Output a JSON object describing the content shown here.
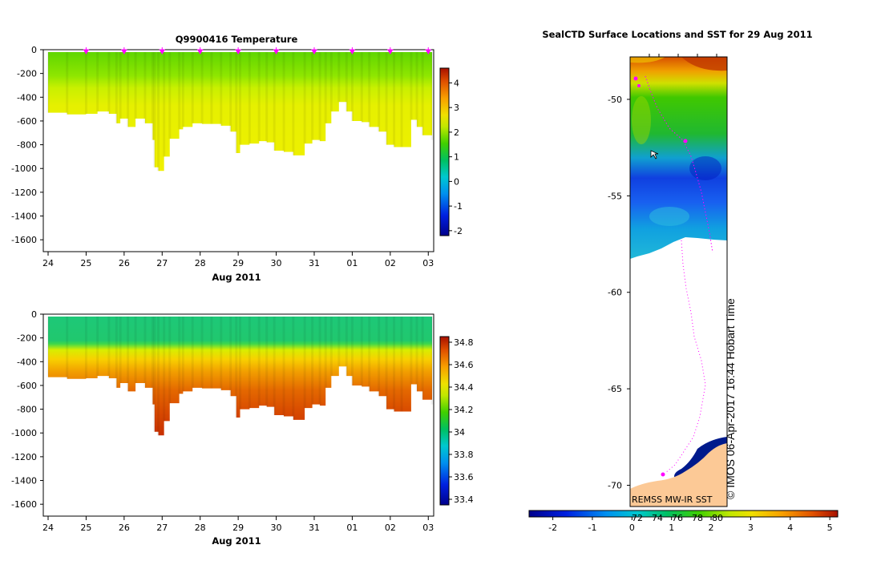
{
  "colors": {
    "white": "#ffffff",
    "land": "#fcc996",
    "track": "#ff00ff"
  },
  "chart_data": [
    {
      "type": "heatmap",
      "title": "Q9900416  Temperature",
      "xlabel": "Aug 2011",
      "ylabel": "",
      "xticks": [
        "24",
        "25",
        "26",
        "27",
        "28",
        "29",
        "30",
        "31",
        "01",
        "02",
        "03"
      ],
      "x_range_days": [
        24.0,
        34.1
      ],
      "ylim": [
        -1700,
        0
      ],
      "yticks": [
        0,
        -200,
        -400,
        -600,
        -800,
        -1000,
        -1200,
        -1400,
        -1600
      ],
      "colorbar": {
        "min": -2.2,
        "max": 4.6,
        "ticks": [
          4,
          3,
          2,
          1,
          0,
          -1,
          -2
        ]
      },
      "surface_markers_days": [
        25,
        26,
        27,
        28,
        29,
        30,
        31,
        32,
        33,
        34
      ],
      "profile_bottoms": [
        {
          "day": 24.0,
          "depth": -530
        },
        {
          "day": 24.5,
          "depth": -545
        },
        {
          "day": 25.0,
          "depth": -540
        },
        {
          "day": 25.3,
          "depth": -520
        },
        {
          "day": 25.6,
          "depth": -540
        },
        {
          "day": 25.8,
          "depth": -620
        },
        {
          "day": 25.9,
          "depth": -580
        },
        {
          "day": 26.1,
          "depth": -650
        },
        {
          "day": 26.3,
          "depth": -580
        },
        {
          "day": 26.55,
          "depth": -620
        },
        {
          "day": 26.75,
          "depth": -760
        },
        {
          "day": 26.8,
          "depth": -990
        },
        {
          "day": 26.9,
          "depth": -1020
        },
        {
          "day": 27.05,
          "depth": -900
        },
        {
          "day": 27.2,
          "depth": -750
        },
        {
          "day": 27.45,
          "depth": -670
        },
        {
          "day": 27.55,
          "depth": -650
        },
        {
          "day": 27.8,
          "depth": -620
        },
        {
          "day": 28.05,
          "depth": -625
        },
        {
          "day": 28.3,
          "depth": -625
        },
        {
          "day": 28.55,
          "depth": -640
        },
        {
          "day": 28.8,
          "depth": -690
        },
        {
          "day": 28.95,
          "depth": -870
        },
        {
          "day": 29.05,
          "depth": -800
        },
        {
          "day": 29.3,
          "depth": -790
        },
        {
          "day": 29.55,
          "depth": -770
        },
        {
          "day": 29.75,
          "depth": -780
        },
        {
          "day": 29.95,
          "depth": -850
        },
        {
          "day": 30.2,
          "depth": -860
        },
        {
          "day": 30.45,
          "depth": -890
        },
        {
          "day": 30.75,
          "depth": -790
        },
        {
          "day": 30.95,
          "depth": -760
        },
        {
          "day": 31.15,
          "depth": -770
        },
        {
          "day": 31.3,
          "depth": -620
        },
        {
          "day": 31.45,
          "depth": -520
        },
        {
          "day": 31.65,
          "depth": -440
        },
        {
          "day": 31.85,
          "depth": -520
        },
        {
          "day": 32.0,
          "depth": -600
        },
        {
          "day": 32.25,
          "depth": -610
        },
        {
          "day": 32.45,
          "depth": -650
        },
        {
          "day": 32.7,
          "depth": -690
        },
        {
          "day": 32.9,
          "depth": -800
        },
        {
          "day": 33.1,
          "depth": -820
        },
        {
          "day": 33.3,
          "depth": -820
        },
        {
          "day": 33.55,
          "depth": -590
        },
        {
          "day": 33.7,
          "depth": -650
        },
        {
          "day": 33.85,
          "depth": -720
        },
        {
          "day": 34.1,
          "depth": -760
        }
      ]
    },
    {
      "type": "heatmap",
      "title": "",
      "xlabel": "Aug 2011",
      "ylabel": "",
      "xticks": [
        "24",
        "25",
        "26",
        "27",
        "28",
        "29",
        "30",
        "31",
        "01",
        "02",
        "03"
      ],
      "x_range_days": [
        24.0,
        34.1
      ],
      "ylim": [
        -1700,
        0
      ],
      "yticks": [
        0,
        -200,
        -400,
        -600,
        -800,
        -1000,
        -1200,
        -1400,
        -1600
      ],
      "colorbar": {
        "min": 33.35,
        "max": 34.85,
        "ticks": [
          34.8,
          34.6,
          34.4,
          34.2,
          34,
          33.8,
          33.6,
          33.4
        ]
      }
    },
    {
      "type": "heatmap",
      "title": "SealCTD Surface Locations and SST for 29 Aug 2011",
      "ylim": [
        -71.1,
        -47.8
      ],
      "yticks": [
        -50,
        -55,
        -60,
        -65,
        -70
      ],
      "colorbar": {
        "min": -2.6,
        "max": 5.2,
        "ticks": [
          -2,
          -1,
          0,
          1,
          2,
          3,
          4,
          5
        ]
      },
      "colorbar_minor_labels": [
        "72",
        "74",
        "76",
        "78",
        "80"
      ],
      "watermark": "© IMOS 06-Apr-2017 16:44 Hobart Time",
      "footnote": "REMSS MW-IR SST"
    }
  ]
}
